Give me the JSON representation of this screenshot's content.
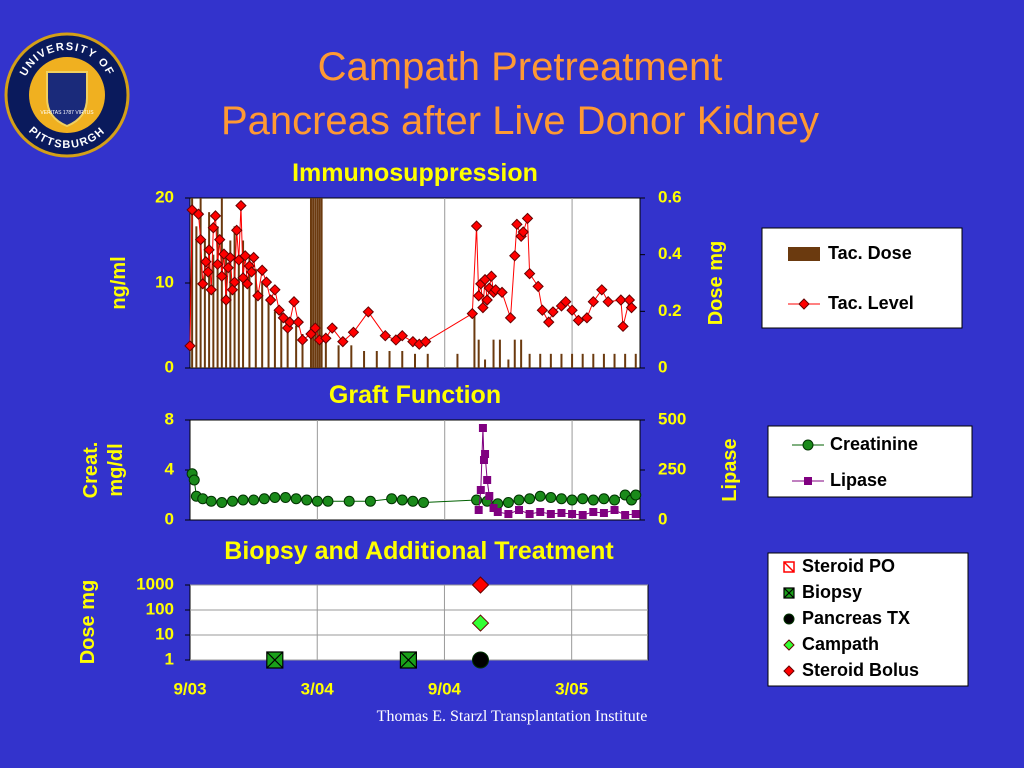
{
  "logo": {
    "top": "UNIVERSITY OF",
    "bottom": "PITTSBURGH",
    "motto": "VERITAS 1787 VIRTUS"
  },
  "title": [
    "Campath Pretreatment",
    "Pancreas after Live Donor Kidney"
  ],
  "footer": "Thomas E. Starzl Transplantation Institute",
  "chart_data": [
    {
      "type": "combo",
      "title": "Immunosuppression",
      "ylabel": [
        "ng/ml"
      ],
      "y2label": "Dose mg",
      "xlim": [
        0,
        21.2
      ],
      "ylim": [
        0,
        20
      ],
      "yticks": [
        0,
        10,
        20
      ],
      "y2lim": [
        0,
        0.6
      ],
      "y2ticks": [
        0,
        0.2,
        0.4,
        0.6
      ],
      "series": [
        {
          "name": "Tac. Dose",
          "type": "bar",
          "axis": "y2",
          "color": "#6b3a0f",
          "x": [
            0.1,
            0.3,
            0.5,
            0.7,
            0.9,
            1.1,
            1.3,
            1.5,
            1.7,
            1.9,
            2.1,
            2.3,
            2.5,
            2.8,
            3.1,
            3.4,
            3.7,
            4.0,
            4.3,
            4.6,
            5.0,
            5.3,
            5.7,
            5.8,
            5.9,
            6.0,
            6.1,
            6.2,
            6.4,
            7.0,
            7.6,
            8.2,
            8.8,
            9.4,
            10.0,
            10.6,
            11.2,
            12.6,
            13.4,
            13.6,
            13.9,
            14.3,
            14.6,
            15.0,
            15.3,
            15.6,
            16.0,
            16.5,
            17.0,
            17.5,
            18.0,
            18.5,
            19.0,
            19.5,
            20.0,
            20.5,
            21.0
          ],
          "values": [
            0.6,
            0.5,
            0.6,
            0.45,
            0.55,
            0.4,
            0.5,
            0.6,
            0.4,
            0.45,
            0.5,
            0.4,
            0.45,
            0.4,
            0.35,
            0.3,
            0.25,
            0.2,
            0.2,
            0.15,
            0.15,
            0.12,
            0.6,
            0.6,
            0.6,
            0.6,
            0.6,
            0.6,
            0.1,
            0.08,
            0.08,
            0.06,
            0.06,
            0.06,
            0.06,
            0.05,
            0.05,
            0.05,
            0.2,
            0.1,
            0.03,
            0.1,
            0.1,
            0.03,
            0.1,
            0.1,
            0.05,
            0.05,
            0.05,
            0.05,
            0.05,
            0.05,
            0.05,
            0.05,
            0.05,
            0.05,
            0.05
          ]
        },
        {
          "name": "Tac. Level",
          "type": "line",
          "marker": "diamond",
          "color": "#ff0000",
          "line_color": "#ff0000",
          "x": [
            0,
            0.1,
            0.4,
            0.5,
            0.6,
            0.75,
            0.85,
            0.9,
            1.0,
            1.1,
            1.2,
            1.3,
            1.4,
            1.5,
            1.6,
            1.7,
            1.8,
            1.9,
            2.0,
            2.1,
            2.2,
            2.3,
            2.4,
            2.5,
            2.6,
            2.7,
            2.8,
            2.9,
            3.0,
            3.2,
            3.4,
            3.6,
            3.8,
            4.0,
            4.2,
            4.4,
            4.6,
            4.7,
            4.9,
            5.1,
            5.3,
            5.7,
            5.9,
            6.1,
            6.4,
            6.7,
            7.2,
            7.7,
            8.4,
            9.2,
            9.7,
            10.0,
            10.5,
            10.8,
            11.1,
            13.3,
            13.5,
            13.6,
            13.7,
            13.8,
            13.9,
            14.0,
            14.1,
            14.2,
            14.3,
            14.4,
            14.7,
            15.1,
            15.3,
            15.4,
            15.6,
            15.7,
            15.9,
            16.0,
            16.4,
            16.6,
            16.9,
            17.1,
            17.5,
            17.7,
            18.0,
            18.3,
            18.7,
            19.0,
            19.4,
            19.7,
            20.3,
            20.4,
            20.7,
            20.8
          ],
          "values": [
            2.6,
            18.6,
            18.1,
            15.1,
            9.9,
            12.5,
            11.3,
            13.9,
            9.2,
            16.5,
            17.9,
            12.2,
            15.1,
            10.8,
            13.4,
            8.0,
            11.8,
            13.0,
            9.2,
            10.1,
            16.2,
            12.7,
            19.1,
            10.6,
            13.2,
            9.9,
            12.0,
            11.3,
            13.0,
            8.5,
            11.5,
            10.1,
            8.0,
            9.2,
            6.8,
            5.9,
            4.7,
            5.4,
            7.8,
            5.4,
            3.3,
            4.0,
            4.7,
            3.3,
            3.5,
            4.7,
            3.1,
            4.2,
            6.6,
            3.8,
            3.3,
            3.8,
            3.1,
            2.8,
            3.1,
            6.4,
            16.7,
            8.5,
            9.9,
            7.1,
            10.4,
            8.0,
            9.4,
            10.8,
            8.9,
            9.2,
            8.9,
            5.9,
            13.2,
            16.9,
            15.5,
            16.0,
            17.6,
            11.1,
            9.6,
            6.8,
            5.4,
            6.6,
            7.3,
            7.8,
            6.8,
            5.6,
            5.9,
            7.8,
            9.2,
            7.8,
            8.0,
            4.9,
            8.0,
            7.1
          ]
        }
      ]
    },
    {
      "type": "combo",
      "title": "Graft Function",
      "ylabel": [
        "Creat.",
        "mg/dl"
      ],
      "y2label": "Lipase",
      "xlim": [
        0,
        21.2
      ],
      "ylim": [
        0,
        8
      ],
      "yticks": [
        0,
        4,
        8
      ],
      "y2lim": [
        0,
        500
      ],
      "y2ticks": [
        0,
        250,
        500
      ],
      "series": [
        {
          "name": "Creatinine",
          "type": "line",
          "marker": "circle",
          "color": "#1a8a1a",
          "line_color": "#006000",
          "x": [
            0.1,
            0.2,
            0.3,
            0.6,
            1,
            1.5,
            2,
            2.5,
            3,
            3.5,
            4,
            4.5,
            5,
            5.5,
            6,
            6.5,
            7.5,
            8.5,
            9.5,
            10,
            10.5,
            11,
            13.5,
            14,
            14.5,
            15,
            15.5,
            16,
            16.5,
            17,
            17.5,
            18,
            18.5,
            19,
            19.5,
            20,
            20.5,
            20.8,
            21
          ],
          "values": [
            3.7,
            3.2,
            1.9,
            1.7,
            1.5,
            1.4,
            1.5,
            1.6,
            1.6,
            1.7,
            1.8,
            1.8,
            1.7,
            1.6,
            1.5,
            1.5,
            1.5,
            1.5,
            1.7,
            1.6,
            1.5,
            1.4,
            1.6,
            1.5,
            1.3,
            1.4,
            1.6,
            1.7,
            1.9,
            1.8,
            1.7,
            1.6,
            1.7,
            1.6,
            1.7,
            1.6,
            2.0,
            1.6,
            2.0
          ]
        },
        {
          "name": "Lipase",
          "type": "line",
          "marker": "square",
          "axis": "y2",
          "color": "#800080",
          "line_color": "#800080",
          "x": [
            13.6,
            13.7,
            13.8,
            13.85,
            13.9,
            14,
            14.1,
            14.3,
            14.5,
            15,
            15.5,
            16,
            16.5,
            17,
            17.5,
            18,
            18.5,
            19,
            19.5,
            20,
            20.5,
            21
          ],
          "values": [
            50,
            150,
            460,
            300,
            330,
            200,
            120,
            60,
            40,
            30,
            50,
            30,
            40,
            30,
            35,
            30,
            25,
            40,
            35,
            50,
            25,
            30
          ]
        }
      ]
    },
    {
      "type": "scatter",
      "title": "Biopsy and Additional Treatment",
      "ylabel": [
        "Dose mg"
      ],
      "xlim": [
        0,
        21.6
      ],
      "ylim": [
        1,
        1000
      ],
      "yscale": "log",
      "yticks": [
        1,
        10,
        100,
        1000
      ],
      "grid": true,
      "xticks": [
        {
          "value": 0,
          "label": "9/03"
        },
        {
          "value": 6,
          "label": "3/04"
        },
        {
          "value": 12,
          "label": "9/04"
        },
        {
          "value": 18,
          "label": "3/05"
        }
      ],
      "series": [
        {
          "name": "Steroid PO",
          "type": "scatter",
          "marker": "hatch",
          "color": "#ff0000",
          "x": [],
          "values": []
        },
        {
          "name": "Biopsy",
          "type": "scatter",
          "marker": "box-x",
          "color": "#1aa01a",
          "x": [
            4.0,
            10.3
          ],
          "values": [
            1,
            1
          ]
        },
        {
          "name": "Pancreas TX",
          "type": "scatter",
          "marker": "circle",
          "color": "#000000",
          "x": [
            13.7
          ],
          "values": [
            1
          ]
        },
        {
          "name": "Campath",
          "type": "scatter",
          "marker": "diamond",
          "color": "#33ff33",
          "x": [
            13.7
          ],
          "values": [
            30
          ]
        },
        {
          "name": "Steroid Bolus",
          "type": "scatter",
          "marker": "diamond",
          "color": "#ff0000",
          "x": [
            13.7
          ],
          "values": [
            1000
          ]
        }
      ]
    }
  ]
}
